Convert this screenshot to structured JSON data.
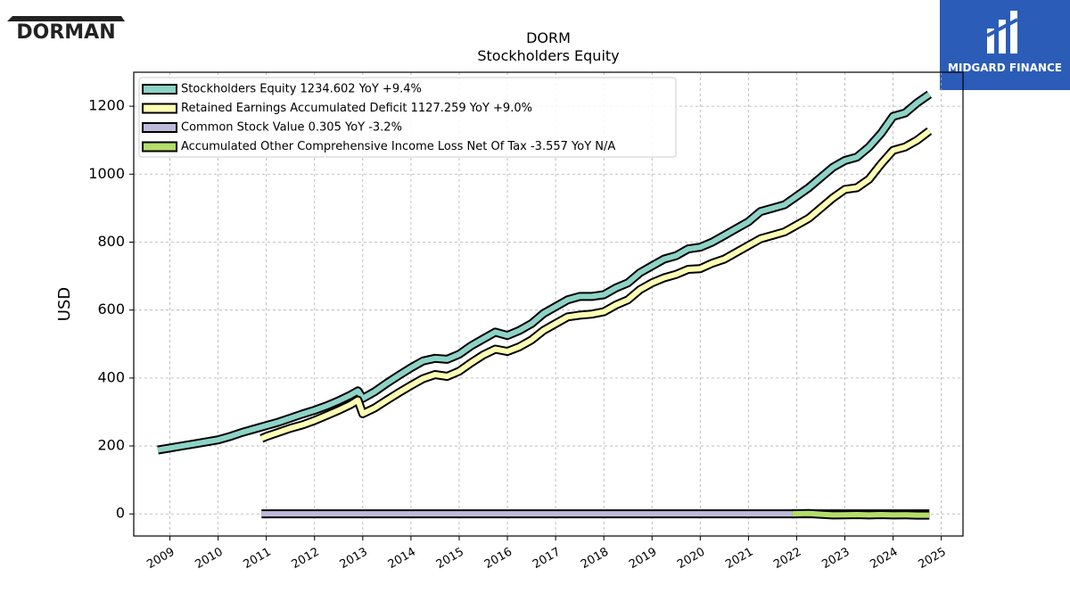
{
  "brand_left": {
    "name": "DORMAN"
  },
  "brand_right": {
    "name": "MIDGARD FINANCE"
  },
  "chart_data": {
    "type": "line",
    "title": "DORM",
    "subtitle": "Stockholders  Equity",
    "ylabel": "USD",
    "xlim": [
      2008.25,
      2025.45
    ],
    "ylim": [
      -65,
      1300
    ],
    "yticks": [
      0,
      200,
      400,
      600,
      800,
      1000,
      1200
    ],
    "xticks": [
      "2009",
      "2010",
      "2011",
      "2012",
      "2013",
      "2014",
      "2015",
      "2016",
      "2017",
      "2018",
      "2019",
      "2020",
      "2021",
      "2022",
      "2023",
      "2024",
      "2025"
    ],
    "grid": true,
    "legend_position": "top-left",
    "series": [
      {
        "name": "Stockholders Equity",
        "legend": "Stockholders Equity  1234.602 YoY +9.4%",
        "color": "#8dd3c7",
        "x": [
          2008.75,
          2009.0,
          2009.25,
          2009.5,
          2009.75,
          2010.0,
          2010.25,
          2010.5,
          2010.75,
          2011.0,
          2011.25,
          2011.5,
          2011.75,
          2012.0,
          2012.25,
          2012.5,
          2012.75,
          2012.9,
          2013.0,
          2013.25,
          2013.5,
          2013.75,
          2014.0,
          2014.25,
          2014.5,
          2014.75,
          2015.0,
          2015.25,
          2015.5,
          2015.75,
          2016.0,
          2016.25,
          2016.5,
          2016.75,
          2017.0,
          2017.25,
          2017.5,
          2017.75,
          2018.0,
          2018.25,
          2018.5,
          2018.75,
          2019.0,
          2019.25,
          2019.5,
          2019.75,
          2020.0,
          2020.25,
          2020.5,
          2020.75,
          2021.0,
          2021.25,
          2021.5,
          2021.75,
          2022.0,
          2022.25,
          2022.5,
          2022.75,
          2023.0,
          2023.25,
          2023.5,
          2023.75,
          2024.0,
          2024.25,
          2024.5,
          2024.75
        ],
        "values": [
          188,
          194,
          200,
          206,
          212,
          218,
          228,
          240,
          250,
          260,
          270,
          282,
          294,
          305,
          318,
          333,
          350,
          362,
          340,
          360,
          385,
          408,
          430,
          450,
          458,
          455,
          470,
          495,
          515,
          535,
          525,
          540,
          560,
          590,
          610,
          630,
          640,
          640,
          645,
          665,
          680,
          710,
          730,
          750,
          760,
          780,
          785,
          800,
          820,
          840,
          860,
          890,
          900,
          910,
          935,
          960,
          990,
          1020,
          1040,
          1050,
          1080,
          1120,
          1170,
          1180,
          1210,
          1235
        ]
      },
      {
        "name": "Retained Earnings Accumulated Deficit",
        "legend": "Retained Earnings Accumulated Deficit  1127.259 YoY +9.0%",
        "color": "#ffffb3",
        "x": [
          2010.9,
          2011.0,
          2011.25,
          2011.5,
          2011.75,
          2012.0,
          2012.25,
          2012.5,
          2012.75,
          2012.9,
          2013.0,
          2013.25,
          2013.5,
          2013.75,
          2014.0,
          2014.25,
          2014.5,
          2014.75,
          2015.0,
          2015.25,
          2015.5,
          2015.75,
          2016.0,
          2016.25,
          2016.5,
          2016.75,
          2017.0,
          2017.25,
          2017.5,
          2017.75,
          2018.0,
          2018.25,
          2018.5,
          2018.75,
          2019.0,
          2019.25,
          2019.5,
          2019.75,
          2020.0,
          2020.25,
          2020.5,
          2020.75,
          2021.0,
          2021.25,
          2021.5,
          2021.75,
          2022.0,
          2022.25,
          2022.5,
          2022.75,
          2023.0,
          2023.25,
          2023.5,
          2023.75,
          2024.0,
          2024.25,
          2024.5,
          2024.75
        ],
        "values": [
          222,
          228,
          240,
          252,
          262,
          275,
          290,
          305,
          322,
          335,
          295,
          312,
          335,
          357,
          378,
          398,
          410,
          405,
          420,
          445,
          468,
          485,
          478,
          492,
          512,
          540,
          560,
          580,
          585,
          588,
          595,
          615,
          630,
          660,
          680,
          695,
          705,
          720,
          722,
          738,
          750,
          770,
          790,
          810,
          820,
          830,
          850,
          870,
          900,
          930,
          955,
          960,
          985,
          1030,
          1070,
          1080,
          1100,
          1127
        ]
      },
      {
        "name": "Common Stock Value",
        "legend": "Common Stock Value  0.305 YoY -3.2%",
        "color": "#bebada",
        "x": [
          2010.9,
          2011.5,
          2012.0,
          2013.0,
          2014.0,
          2015.0,
          2016.0,
          2017.0,
          2018.0,
          2019.0,
          2020.0,
          2021.0,
          2022.0,
          2023.0,
          2024.0,
          2024.75
        ],
        "values": [
          0.36,
          0.36,
          0.36,
          0.36,
          0.36,
          0.36,
          0.36,
          0.35,
          0.35,
          0.34,
          0.33,
          0.33,
          0.32,
          0.32,
          0.31,
          0.305
        ]
      },
      {
        "name": "Accumulated Other Comprehensive Income Loss Net Of Tax",
        "legend": "Accumulated Other Comprehensive Income Loss Net Of Tax  -3.557 YoY N/A",
        "color": "#b3de69",
        "x": [
          2021.9,
          2022.25,
          2022.5,
          2022.75,
          2023.0,
          2023.25,
          2023.5,
          2023.75,
          2024.0,
          2024.25,
          2024.5,
          2024.75
        ],
        "values": [
          0,
          1.5,
          -1,
          -3,
          -2.5,
          -2,
          -3,
          -2,
          -3,
          -2.5,
          -3.5,
          -3.557
        ]
      }
    ]
  }
}
